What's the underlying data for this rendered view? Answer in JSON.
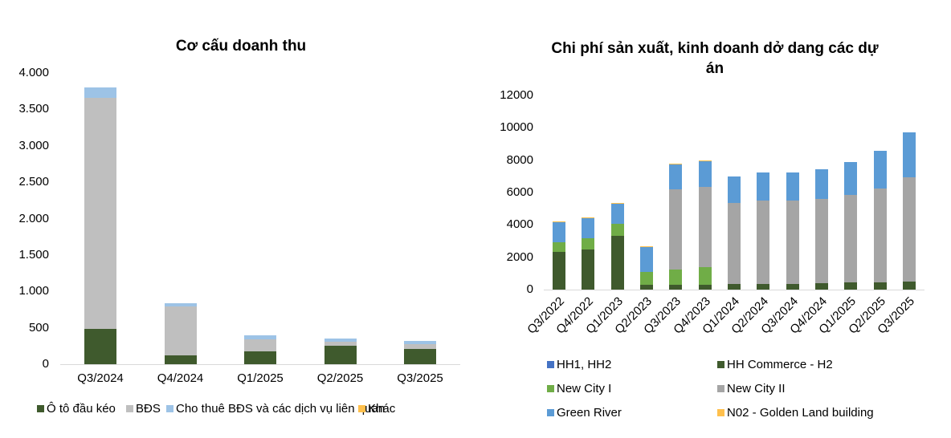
{
  "chart_data": [
    {
      "type": "bar",
      "stacked": true,
      "title": "Cơ cấu doanh thu",
      "xlabel": "",
      "ylabel": "",
      "ylim": [
        0,
        4000
      ],
      "yticks": [
        "0",
        "500",
        "1.000",
        "1.500",
        "2.000",
        "2.500",
        "3.000",
        "3.500",
        "4.000"
      ],
      "categories": [
        "Q3/2024",
        "Q4/2024",
        "Q1/2025",
        "Q2/2025",
        "Q3/2025"
      ],
      "series": [
        {
          "name": "Ô tô đầu kéo",
          "color": "#3f5a2d",
          "values": [
            485,
            120,
            175,
            255,
            212
          ]
        },
        {
          "name": "BĐS",
          "color": "#bfbfbf",
          "values": [
            3175,
            675,
            165,
            55,
            63
          ]
        },
        {
          "name": "Cho thuê BĐS và các dịch vụ liên quan",
          "color": "#9dc3e6",
          "values": [
            140,
            40,
            55,
            45,
            45
          ]
        },
        {
          "name": "Khác",
          "color": "#ffc04d",
          "values": [
            0,
            0,
            0,
            0,
            0
          ]
        }
      ],
      "legend_position": "bottom",
      "grid": false
    },
    {
      "type": "bar",
      "stacked": true,
      "title": "Chi phí sản xuất, kinh doanh dở dang các dự án",
      "title_line1": "Chi phí sản xuất, kinh doanh dở dang các dự",
      "title_line2": "án",
      "xlabel": "",
      "ylabel": "",
      "ylim": [
        0,
        12000
      ],
      "yticks": [
        "0",
        "2000",
        "4000",
        "6000",
        "8000",
        "10000",
        "12000"
      ],
      "categories": [
        "Q3/2022",
        "Q4/2022",
        "Q1/2023",
        "Q2/2023",
        "Q3/2023",
        "Q4/2023",
        "Q1/2024",
        "Q2/2024",
        "Q3/2024",
        "Q4/2024",
        "Q1/2025",
        "Q2/2025",
        "Q3/2025"
      ],
      "series": [
        {
          "name": "HH1, HH2",
          "color": "#4472c4",
          "values": [
            0,
            0,
            0,
            0,
            0,
            0,
            0,
            0,
            0,
            0,
            0,
            0,
            0
          ]
        },
        {
          "name": "HH Commerce - H2",
          "color": "#3f5a2d",
          "values": [
            2320,
            2480,
            3310,
            310,
            310,
            310,
            340,
            360,
            360,
            390,
            430,
            460,
            500
          ]
        },
        {
          "name": "New City I",
          "color": "#70ad47",
          "values": [
            590,
            680,
            775,
            800,
            940,
            1060,
            0,
            0,
            0,
            0,
            0,
            0,
            0
          ]
        },
        {
          "name": "New City II",
          "color": "#a5a5a5",
          "values": [
            0,
            0,
            0,
            0,
            4950,
            4970,
            5020,
            5140,
            5140,
            5200,
            5410,
            5790,
            6460
          ]
        },
        {
          "name": "Green River",
          "color": "#5b9bd5",
          "values": [
            1270,
            1270,
            1220,
            1550,
            1560,
            1620,
            1640,
            1740,
            1740,
            1870,
            2060,
            2310,
            2740
          ]
        },
        {
          "name": "N02 - Golden Land building",
          "color": "#ffc04d",
          "values": [
            20,
            20,
            40,
            20,
            30,
            30,
            0,
            0,
            0,
            0,
            0,
            0,
            0
          ]
        }
      ],
      "legend_position": "bottom",
      "grid": false
    }
  ]
}
